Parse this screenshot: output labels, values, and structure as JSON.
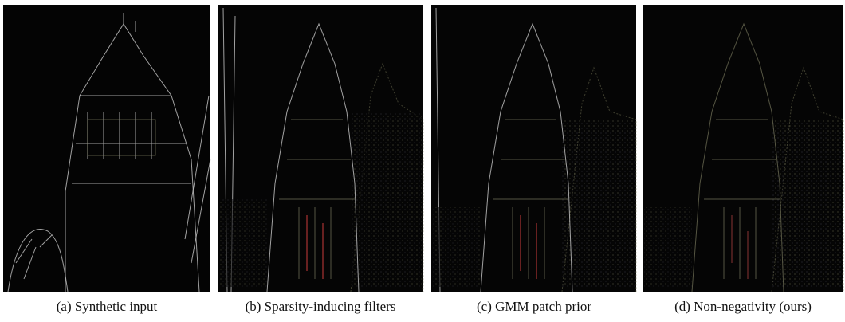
{
  "figure": {
    "panels": [
      {
        "caption": "(a) Synthetic input"
      },
      {
        "caption": "(b) Sparsity-inducing filters"
      },
      {
        "caption": "(c) GMM patch prior"
      },
      {
        "caption": "(d) Non-negativity (ours)"
      }
    ]
  }
}
